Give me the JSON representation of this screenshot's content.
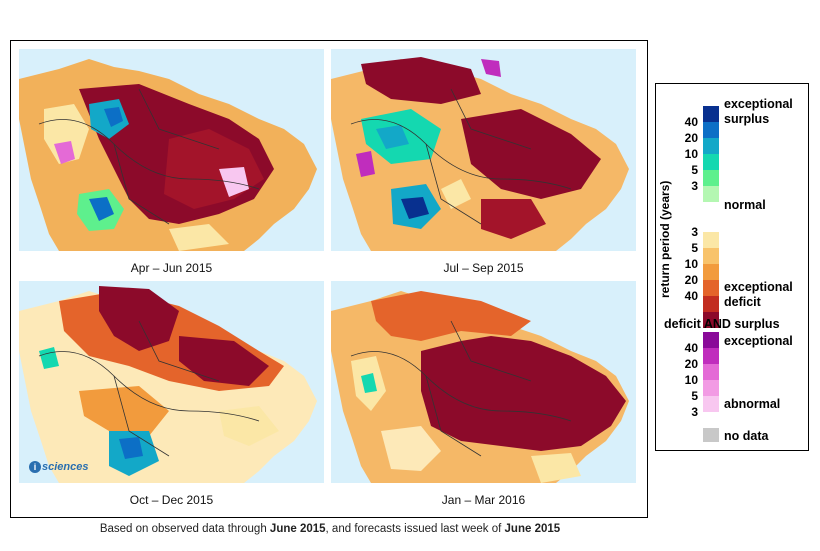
{
  "panels": [
    {
      "id": "p1",
      "label": "Apr – Jun 2015"
    },
    {
      "id": "p2",
      "label": "Jul – Sep 2015"
    },
    {
      "id": "p3",
      "label": "Oct – Dec 2015"
    },
    {
      "id": "p4",
      "label": "Jan – Mar 2016"
    }
  ],
  "logo": {
    "text": "sciences",
    "mark": "i"
  },
  "footnote": {
    "prefix": "Based on observed data through ",
    "date1": "June 2015",
    "middle": ", and forecasts issued last week of ",
    "date2": "June 2015"
  },
  "legend": {
    "axis_label": "return period (years)",
    "surplus_label_1": "exceptional",
    "surplus_label_2": "surplus",
    "normal_label": "normal",
    "deficit_label_1": "exceptional",
    "deficit_label_2": "deficit",
    "both_title": "deficit AND surplus",
    "both_exceptional": "exceptional",
    "both_abnormal": "abnormal",
    "nodata_label": "no data",
    "surplus_ticks": [
      "40",
      "20",
      "10",
      "5",
      "3"
    ],
    "deficit_ticks": [
      "3",
      "5",
      "10",
      "20",
      "40"
    ],
    "both_ticks": [
      "40",
      "20",
      "10",
      "5",
      "3"
    ],
    "surplus_colors": [
      "#08308f",
      "#0c6fc6",
      "#13a8c8",
      "#14d8b0",
      "#5ef08d",
      "#b4f7b2"
    ],
    "deficit_colors": [
      "#fbe7a6",
      "#f8c36b",
      "#f29b3d",
      "#e4642b",
      "#c22d21",
      "#8c0a2a"
    ],
    "both_colors": [
      "#8a0a99",
      "#c02dbd",
      "#e46ad6",
      "#f29be4",
      "#f8c7f0"
    ],
    "nodata_color": "#c8c8c8",
    "normal_color": "#ffffff",
    "ocean_color": "#d8f0fb",
    "border_color": "#333333"
  }
}
